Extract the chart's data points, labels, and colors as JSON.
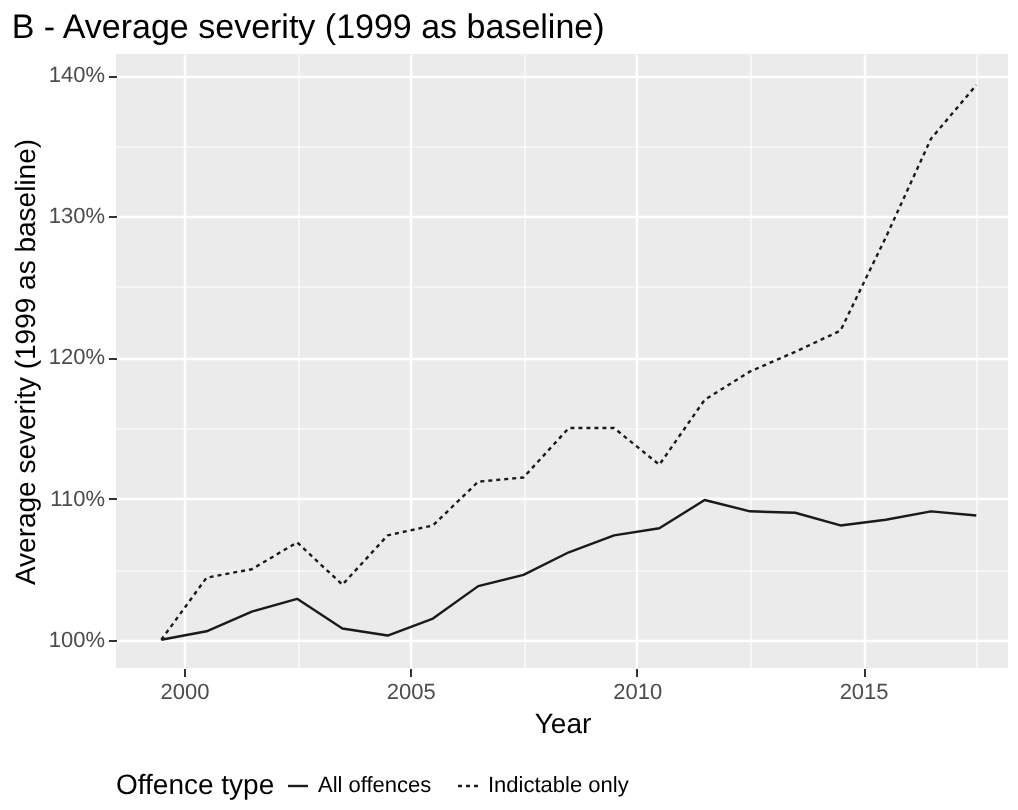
{
  "chart_data": {
    "type": "line",
    "title": "B - Average severity (1999 as baseline)",
    "xlabel": "Year",
    "ylabel": "Average severity (1999 as baseline)",
    "legend_title": "Offence type",
    "legend": "bottom",
    "grid": true,
    "x": [
      1999.5,
      2000.5,
      2001.5,
      2002.5,
      2003.5,
      2004.5,
      2005.5,
      2006.5,
      2007.5,
      2008.5,
      2009.5,
      2010.5,
      2011.5,
      2012.5,
      2013.5,
      2014.5,
      2015.5,
      2016.5,
      2017.5
    ],
    "xlim": [
      1998.5,
      2018.2
    ],
    "xticks": [
      2000,
      {
        "value": 2002.5,
        "label": null
      },
      2005,
      {
        "value": 2007.5,
        "label": null
      },
      2010,
      {
        "value": 2012.5,
        "label": null
      },
      2015,
      {
        "value": 2017.5,
        "label": null
      }
    ],
    "ylim": [
      98,
      141.5
    ],
    "yticks": [
      {
        "value": 100,
        "label": "100%"
      },
      {
        "value": 105,
        "label": null
      },
      {
        "value": 110,
        "label": "110%"
      },
      {
        "value": 115,
        "label": null
      },
      {
        "value": 120,
        "label": "120%"
      },
      {
        "value": 125,
        "label": null
      },
      {
        "value": 130,
        "label": "130%"
      },
      {
        "value": 135,
        "label": null
      },
      {
        "value": 140,
        "label": "140%"
      }
    ],
    "series": [
      {
        "name": "All offences",
        "color": "#1a1a1a",
        "line_style": "solid",
        "values": [
          100,
          100.6,
          102,
          102.9,
          100.8,
          100.3,
          101.5,
          103.8,
          104.6,
          106.2,
          107.4,
          107.9,
          109.9,
          109.1,
          109,
          108.1,
          108.5,
          109.1,
          108.8
        ]
      },
      {
        "name": "Indictable only",
        "color": "#1a1a1a",
        "line_style": "dotted",
        "values": [
          100,
          104.4,
          105,
          106.9,
          103.9,
          107.4,
          108.1,
          111.2,
          111.5,
          115,
          115,
          112.4,
          117,
          119,
          120.4,
          121.9,
          128.5,
          135.5,
          139.3
        ]
      }
    ]
  }
}
